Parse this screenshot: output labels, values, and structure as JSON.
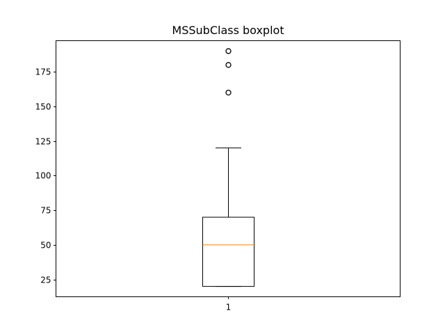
{
  "chart_data": {
    "type": "boxplot",
    "title": "MSSubClass boxplot",
    "xlabel": "",
    "ylabel": "",
    "categories": [
      "1"
    ],
    "ylim": [
      12.5,
      197.5
    ],
    "yticks": [
      25,
      50,
      75,
      100,
      125,
      150,
      175
    ],
    "grid": false,
    "boxes": [
      {
        "category": "1",
        "whisker_low": 20,
        "q1": 20,
        "median": 50,
        "q3": 70,
        "whisker_high": 120,
        "outliers": [
          160,
          180,
          190
        ]
      }
    ],
    "colors": {
      "box": "#000000",
      "median": "#ff7f0e",
      "whisker": "#000000",
      "outlier": "#000000"
    }
  }
}
